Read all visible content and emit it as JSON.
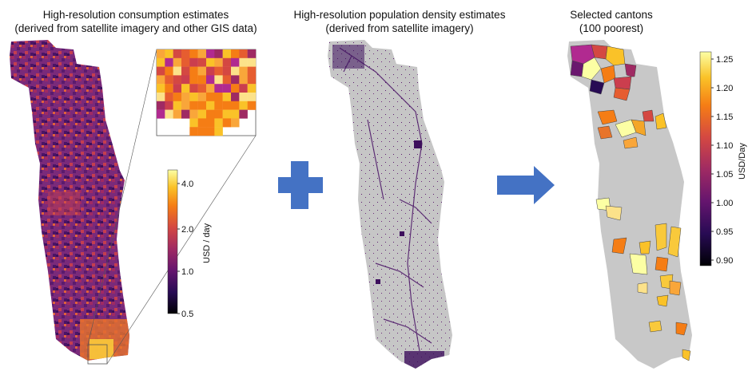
{
  "panels": [
    {
      "title_line1": "High-resolution consumption estimates",
      "title_line2": "(derived from satellite imagery and other GIS data)"
    },
    {
      "title_line1": "High-resolution population density estimates",
      "title_line2": "(derived from satellite imagery)"
    },
    {
      "title_line1": "Selected cantons",
      "title_line2": "(100 poorest)"
    }
  ],
  "colorbar_consumption": {
    "label": "USD / day",
    "ticks": [
      "0.5",
      "1.0",
      "2.0",
      "4.0"
    ]
  },
  "colorbar_cantons": {
    "label": "USD/Day",
    "ticks": [
      "0.90",
      "0.95",
      "1.00",
      "1.05",
      "1.10",
      "1.15",
      "1.20",
      "1.25"
    ]
  },
  "icons": {
    "plus": "plus-icon",
    "arrow": "arrow-right-icon"
  },
  "colors": {
    "accent_blue": "#4472c4",
    "map_gray": "#c8c8c8",
    "map_purple": "#5a1b6e"
  }
}
